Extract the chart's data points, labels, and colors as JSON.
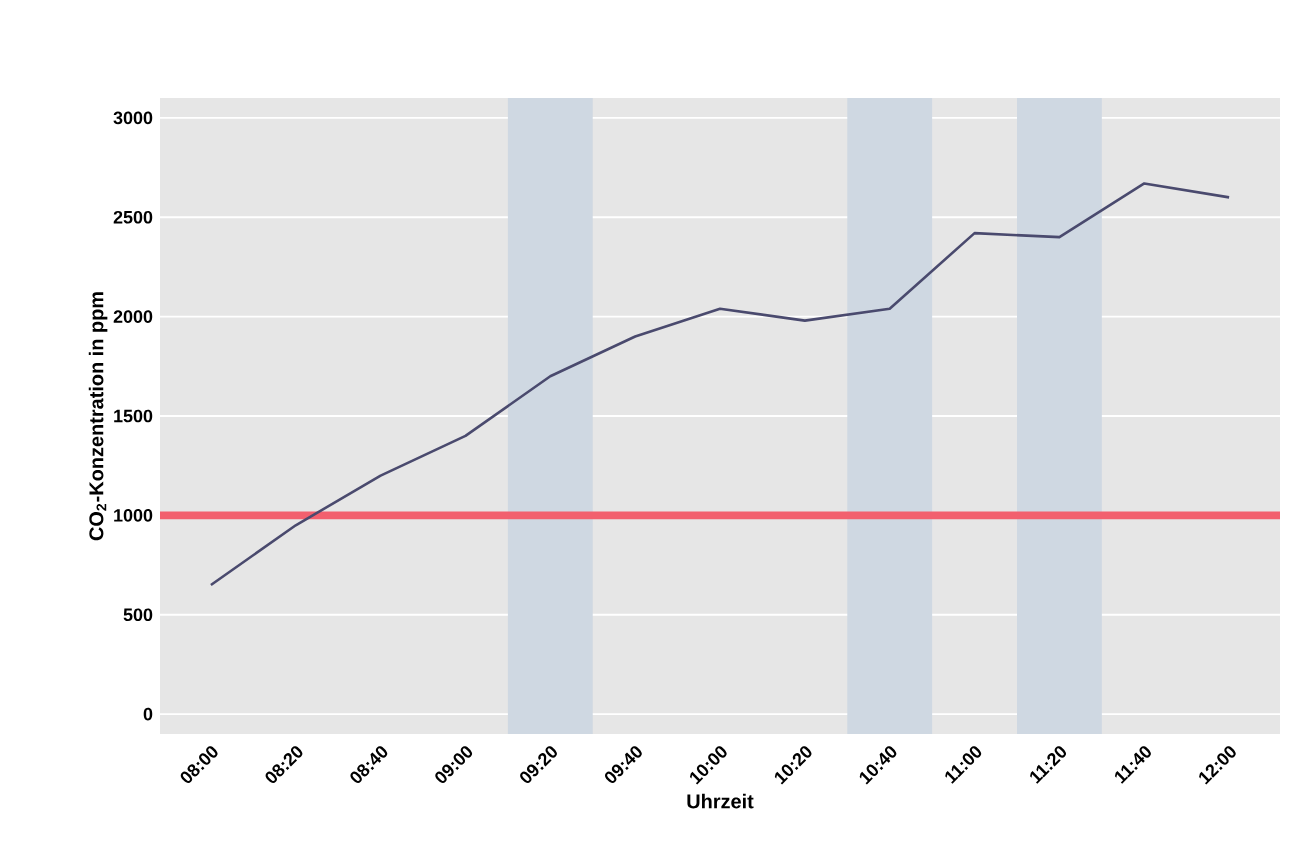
{
  "chart_data": {
    "type": "line",
    "xlabel": "Uhrzeit",
    "ylabel": "CO$_{2}$-Konzentration in ppm",
    "x": [
      8,
      8.3333,
      8.6667,
      9,
      9.3333,
      9.6667,
      10,
      10.3333,
      10.6667,
      11,
      11.3333,
      11.6667,
      12
    ],
    "series": [
      {
        "color": "#4a4a6e",
        "values": [
          650,
          950,
          1200,
          1400,
          1700,
          1900,
          2040,
          1980,
          2040,
          2420,
          2400,
          2670,
          2600
        ]
      }
    ],
    "xlim": [
      7.8,
      12.2
    ],
    "ylim": [
      -100,
      3100
    ],
    "xticks": [
      {
        "value": 8,
        "label": "08:00"
      },
      {
        "value": 8.3333,
        "label": "08:20"
      },
      {
        "value": 8.6667,
        "label": "08:40"
      },
      {
        "value": 9,
        "label": "09:00"
      },
      {
        "value": 9.3333,
        "label": "09:20"
      },
      {
        "value": 9.6667,
        "label": "09:40"
      },
      {
        "value": 10,
        "label": "10:00"
      },
      {
        "value": 10.3333,
        "label": "10:20"
      },
      {
        "value": 10.6667,
        "label": "10:40"
      },
      {
        "value": 11,
        "label": "11:00"
      },
      {
        "value": 11.3333,
        "label": "11:20"
      },
      {
        "value": 11.6667,
        "label": "11:40"
      },
      {
        "value": 12,
        "label": "12:00"
      }
    ],
    "yticks": [
      0,
      500,
      1000,
      1500,
      2000,
      2500,
      3000
    ],
    "bands": [
      {
        "axis": "x",
        "from": 9.1667,
        "to": 9.5,
        "color": "#cfd8e2"
      },
      {
        "axis": "x",
        "from": 10.5,
        "to": 10.8333,
        "color": "#cfd8e2"
      },
      {
        "axis": "x",
        "from": 11.1667,
        "to": 11.5,
        "color": "#cfd8e2"
      }
    ],
    "ref_lines": [
      {
        "axis": "y",
        "value": 1000,
        "color": "#f2606e"
      }
    ],
    "grid": "y",
    "marker": "none",
    "line_style": "solid"
  }
}
